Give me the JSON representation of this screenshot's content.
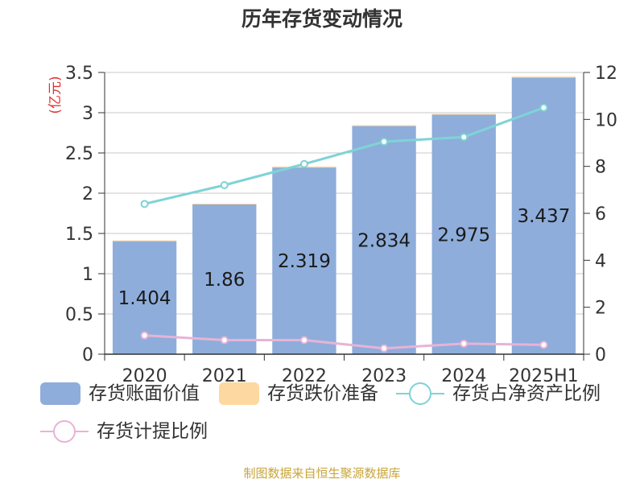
{
  "chart_data": {
    "type": "bar",
    "title": "历年存货变动情况",
    "categories": [
      "2020",
      "2021",
      "2022",
      "2023",
      "2024",
      "2025H1"
    ],
    "left_axis": {
      "unit_label": "(亿元)",
      "ylim": [
        0,
        3.5
      ],
      "ticks": [
        "0",
        "0.5",
        "1",
        "1.5",
        "2",
        "2.5",
        "3",
        "3.5"
      ]
    },
    "right_axis": {
      "ylim": [
        0,
        12
      ],
      "ticks": [
        "0",
        "2",
        "4",
        "6",
        "8",
        "10",
        "12"
      ]
    },
    "grid": true,
    "legend_position": "bottom",
    "series": [
      {
        "name": "存货账面价值",
        "type": "bar",
        "axis": "left",
        "color": "#8eaddb",
        "values": [
          1.404,
          1.86,
          2.319,
          2.834,
          2.975,
          3.437
        ],
        "labels": [
          "1.404",
          "1.86",
          "2.319",
          "2.834",
          "2.975",
          "3.437"
        ]
      },
      {
        "name": "存货跌价准备",
        "type": "bar",
        "axis": "left",
        "stacked": true,
        "color": "#fdd8a0",
        "values": [
          0.01,
          0.01,
          0.012,
          0.012,
          0.012,
          0.012
        ]
      },
      {
        "name": "存货占净资产比例",
        "type": "line",
        "axis": "right",
        "color": "#7fd3d6",
        "values": [
          6.4,
          7.2,
          8.1,
          9.05,
          9.25,
          10.5
        ]
      },
      {
        "name": "存货计提比例",
        "type": "line",
        "axis": "right",
        "color": "#e8b3d6",
        "values": [
          0.8,
          0.6,
          0.6,
          0.25,
          0.45,
          0.4
        ]
      }
    ]
  },
  "source_note": "制图数据来自恒生聚源数据库"
}
